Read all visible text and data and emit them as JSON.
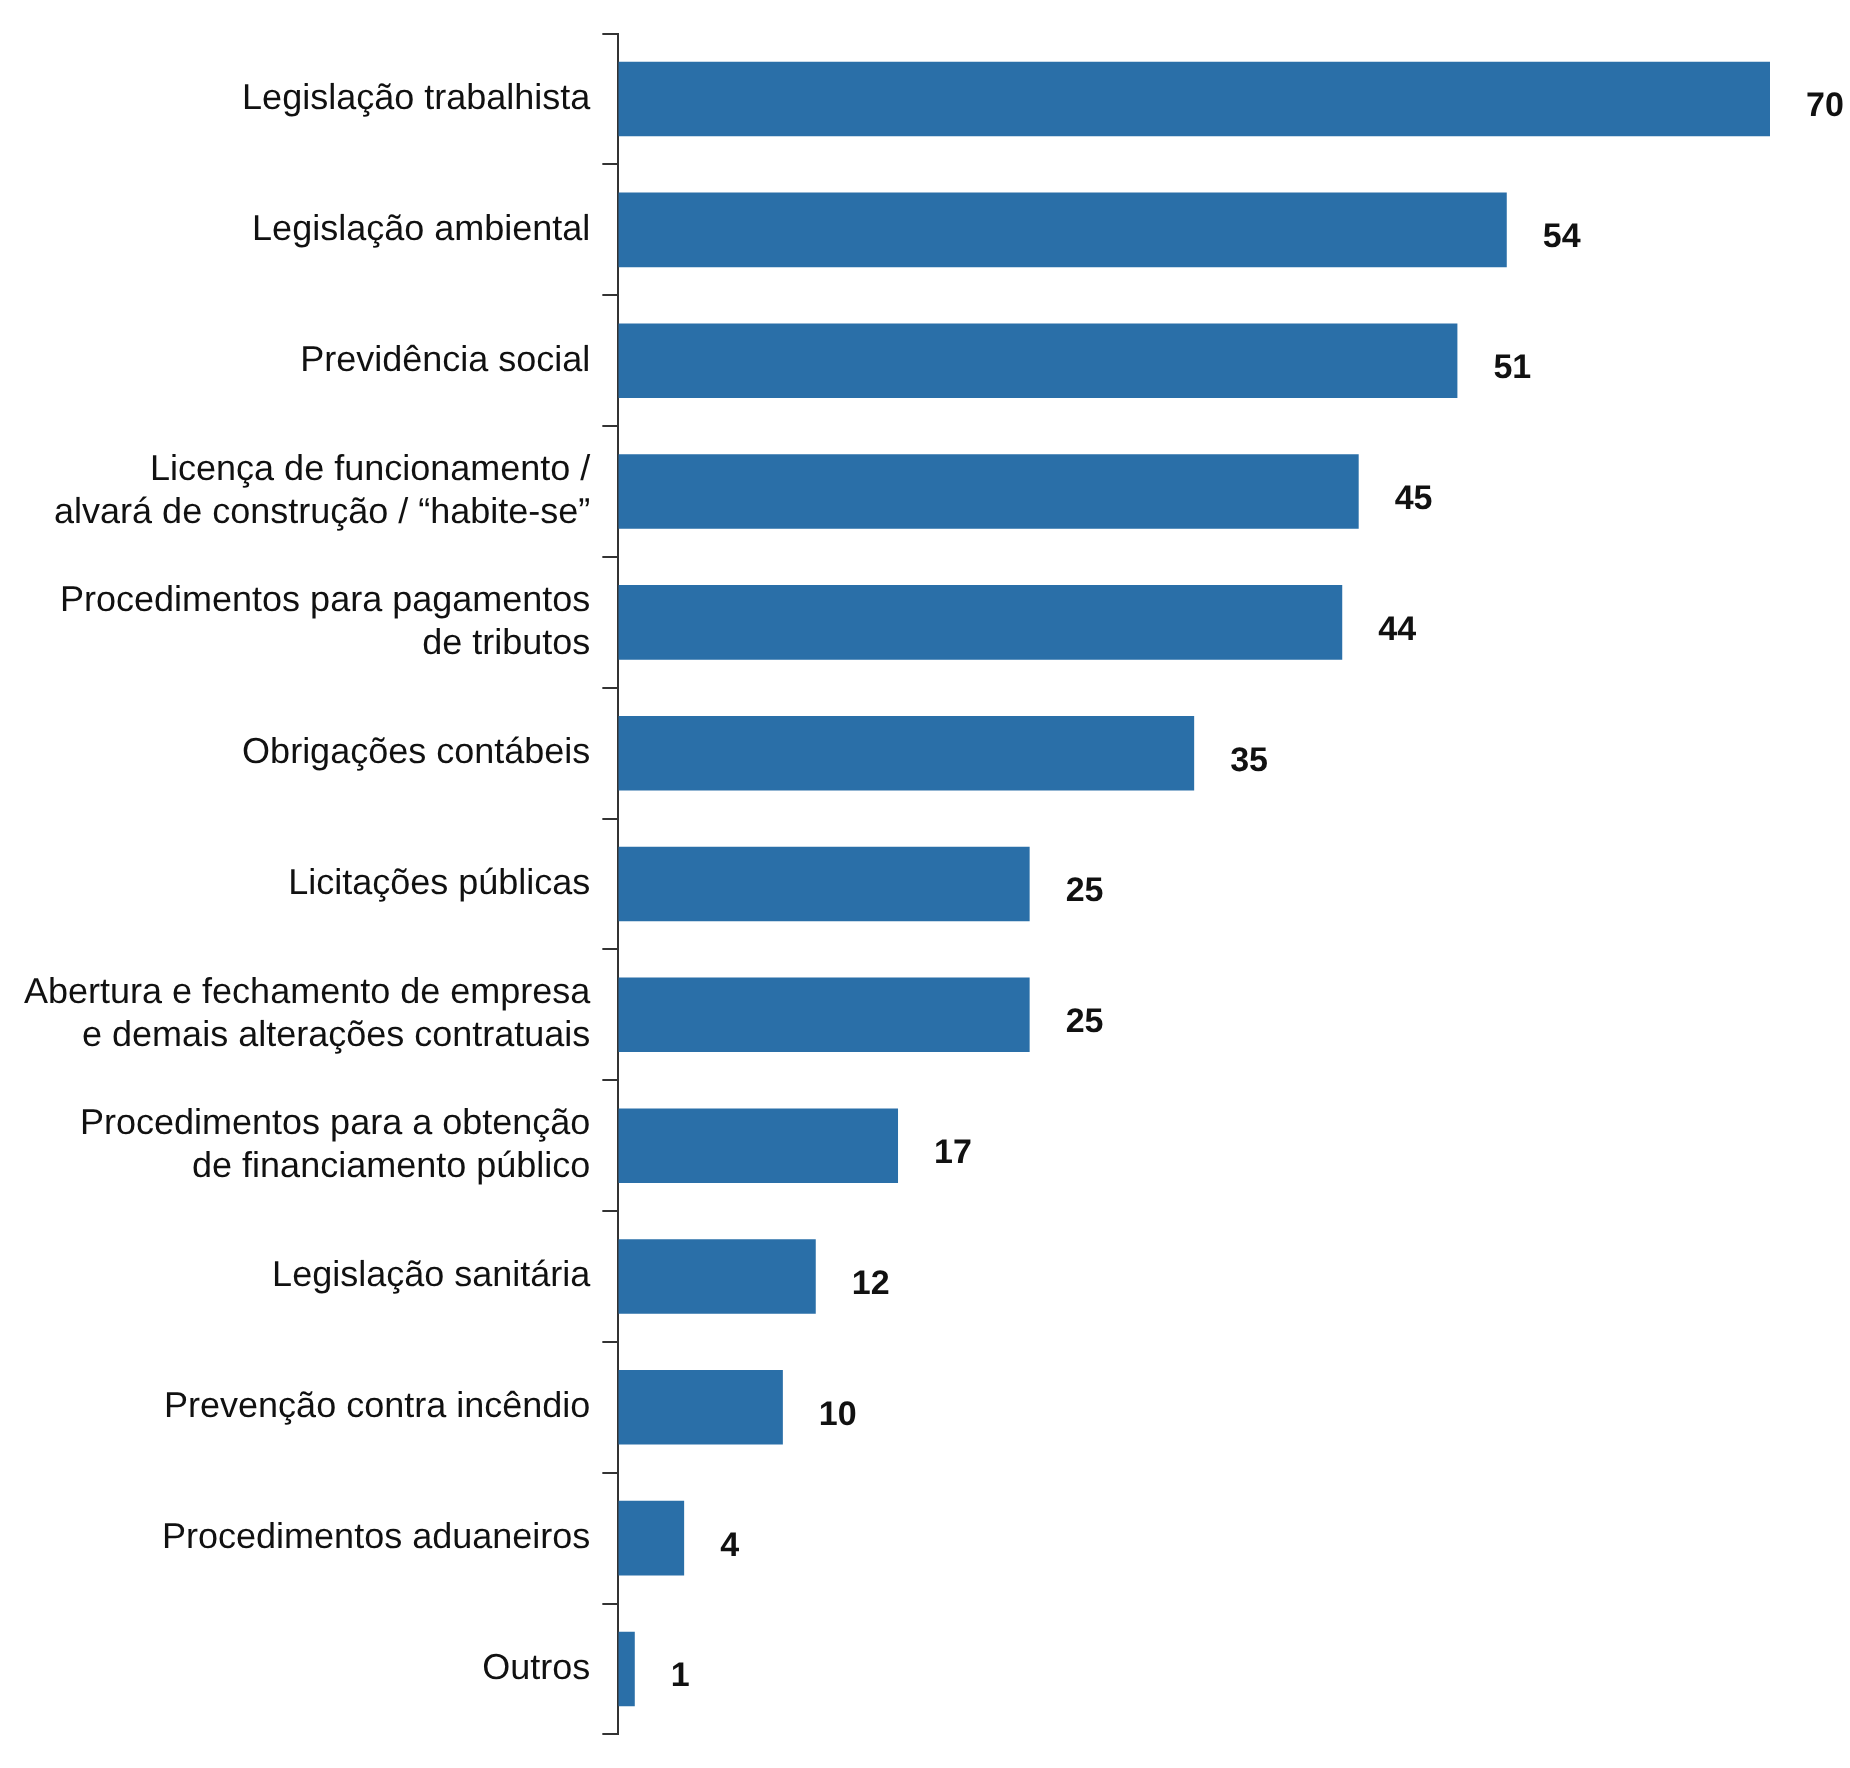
{
  "chart_data": {
    "type": "bar",
    "orientation": "horizontal",
    "categories": [
      "Legislação trabalhista",
      "Legislação ambiental",
      "Previdência social",
      "Licença de funcionamento /\nalvará de construção / “habite-se”",
      "Procedimentos para pagamentos\nde tributos",
      "Obrigações contábeis",
      "Licitações públicas",
      "Abertura e fechamento de empresa\ne demais alterações contratuais",
      "Procedimentos para a obtenção\nde financiamento público",
      "Legislação sanitária",
      "Prevenção contra incêndio",
      "Procedimentos aduaneiros",
      "Outros"
    ],
    "values": [
      70,
      54,
      51,
      45,
      44,
      35,
      25,
      25,
      17,
      12,
      10,
      4,
      1
    ],
    "color": "#2a6fa8",
    "data_labels": true,
    "legend": false
  }
}
